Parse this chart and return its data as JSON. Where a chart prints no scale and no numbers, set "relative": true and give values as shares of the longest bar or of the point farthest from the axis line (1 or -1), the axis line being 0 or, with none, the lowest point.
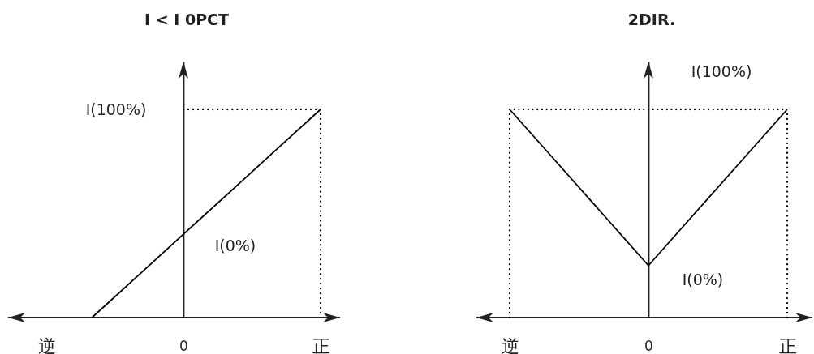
{
  "chart_data": [
    {
      "type": "line",
      "title": "I < I 0PCT",
      "relative": true,
      "categories": [
        "逆",
        null,
        null,
        "0",
        null,
        null,
        "正"
      ],
      "series": [
        {
          "values": [
            null,
            0,
            0.2,
            0.4,
            0.6,
            0.8,
            1
          ],
          "color": "#000000"
        },
        {
          "x": [
            "0",
            "正",
            "正"
          ],
          "values": [
            1,
            1,
            0
          ],
          "color": "#000000",
          "line_style": "dotted"
        }
      ],
      "annotations": [
        "I(100%)",
        "I(0%)"
      ]
    },
    {
      "type": "line",
      "title": "2DIR.",
      "relative": true,
      "categories": [
        "逆",
        null,
        null,
        "0",
        null,
        null,
        "正"
      ],
      "series": [
        {
          "values": [
            1,
            0.75,
            0.5,
            0.25,
            0.5,
            0.75,
            1
          ],
          "color": "#000000"
        },
        {
          "values": [
            1,
            1,
            1,
            1,
            1,
            1,
            1
          ],
          "color": "#000000",
          "line_style": "dotted"
        }
      ],
      "ref_lines": [
        {
          "axis": "x",
          "value": "逆",
          "color": "#000000",
          "line_style": "dotted"
        },
        {
          "axis": "x",
          "value": "正",
          "color": "#000000",
          "line_style": "dotted"
        }
      ],
      "annotations": [
        "I(100%)",
        "I(0%)"
      ]
    }
  ]
}
